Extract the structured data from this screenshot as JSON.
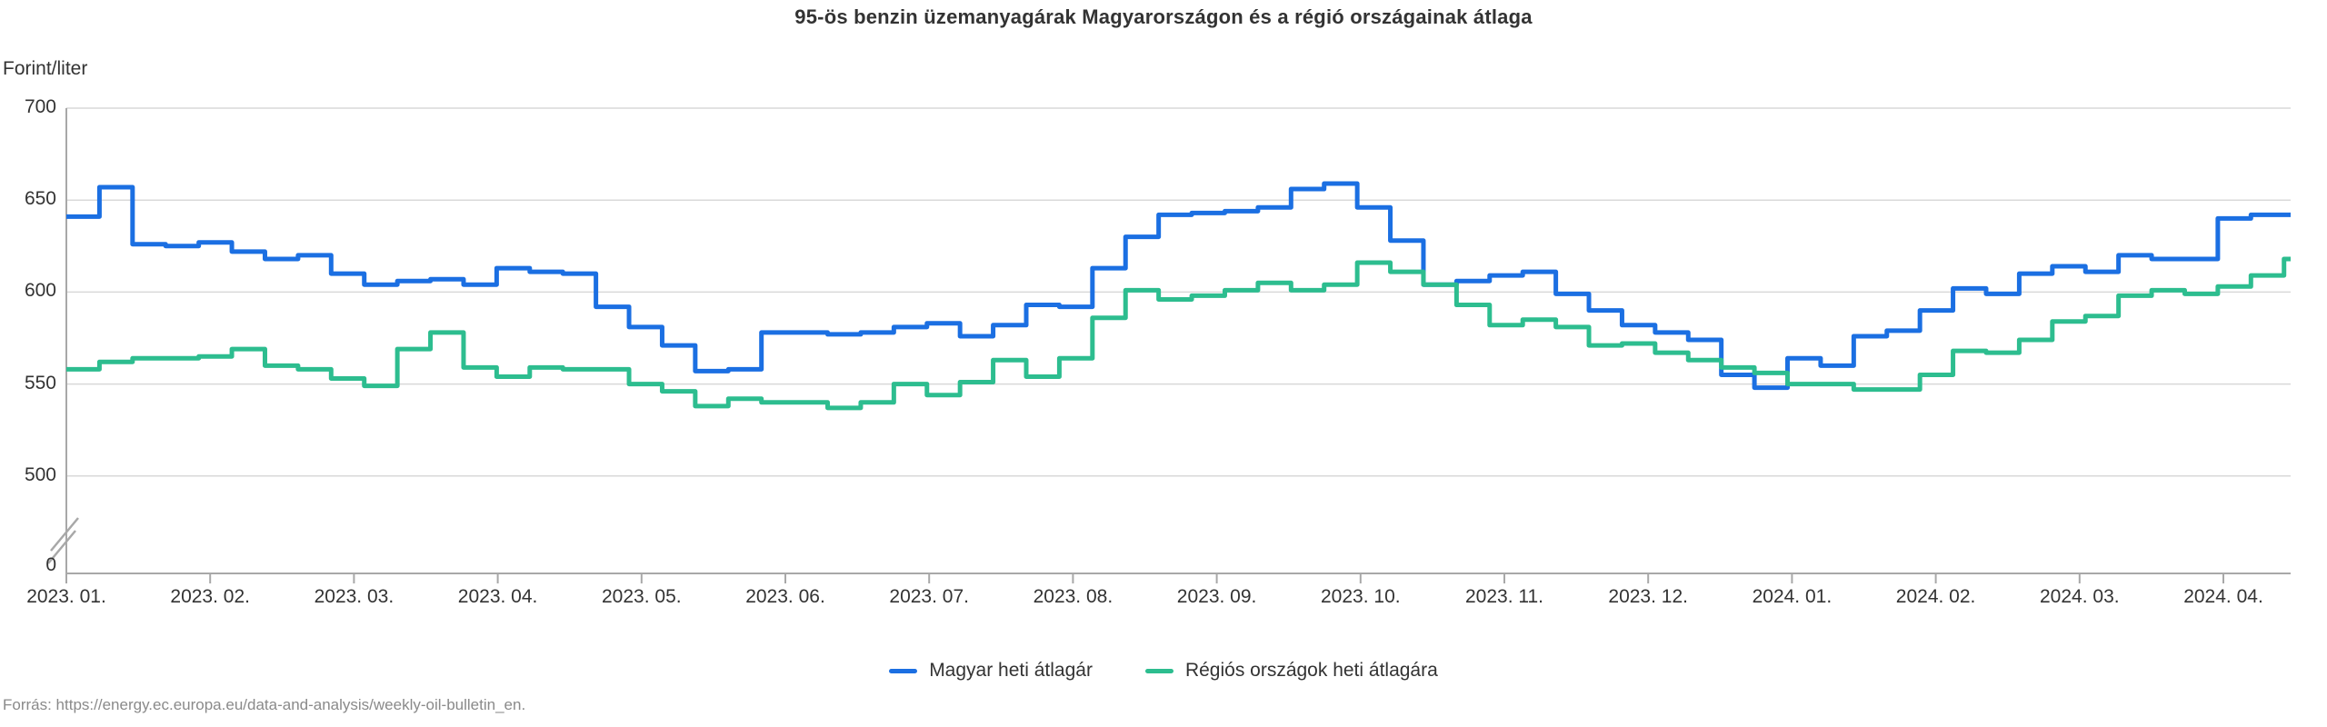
{
  "title": "95-ös benzin üzemanyagárak Magyarországon és a régió országainak átlaga",
  "y_axis_title": "Forint/liter",
  "source": "Forrás: https://energy.ec.europa.eu/data-and-analysis/weekly-oil-bulletin_en.",
  "legend": [
    {
      "label": "Magyar heti átlagár",
      "color": "#1b6fe2"
    },
    {
      "label": "Régiós országok heti átlagára",
      "color": "#2dbd8f"
    }
  ],
  "colors": {
    "hungary_line": "#1b6fe2",
    "region_line": "#2dbd8f",
    "gridline": "#d9d9d9",
    "axis": "#a8a8a8",
    "text": "#333333",
    "source_text": "#8a8a8a"
  },
  "chart_data": {
    "type": "line",
    "step": true,
    "title": "95-ös benzin üzemanyagárak Magyarországon és a régió országainak átlaga",
    "ylabel": "Forint/liter",
    "x_unit": "week",
    "grid": "horizontal",
    "legend_position": "bottom-center",
    "y_axis_break": true,
    "y_tick_labels": [
      "700",
      "650",
      "600",
      "550",
      "500",
      "0"
    ],
    "y_tick_values": [
      700,
      650,
      600,
      550,
      500,
      0
    ],
    "ylim_display": [
      500,
      700
    ],
    "x_tick_labels": [
      "2023. 01.",
      "2023. 02.",
      "2023. 03.",
      "2023. 04.",
      "2023. 05.",
      "2023. 06.",
      "2023. 07.",
      "2023. 08.",
      "2023. 09.",
      "2023. 10.",
      "2023. 11.",
      "2023. 12.",
      "2024. 01.",
      "2024. 02.",
      "2024. 03.",
      "2024. 04."
    ],
    "series": [
      {
        "name": "Magyar heti átlagár",
        "color": "#1b6fe2",
        "values": [
          641,
          657,
          626,
          625,
          627,
          622,
          618,
          620,
          610,
          604,
          606,
          607,
          604,
          613,
          611,
          610,
          592,
          581,
          571,
          557,
          558,
          578,
          578,
          577,
          578,
          581,
          583,
          576,
          582,
          593,
          592,
          613,
          630,
          642,
          643,
          644,
          646,
          656,
          659,
          646,
          628,
          604,
          606,
          609,
          611,
          599,
          590,
          582,
          578,
          574,
          555,
          548,
          564,
          560,
          576,
          579,
          590,
          602,
          599,
          610,
          614,
          611,
          620,
          618,
          618,
          640,
          642,
          642
        ]
      },
      {
        "name": "Régiós országok heti átlagára",
        "color": "#2dbd8f",
        "values": [
          558,
          562,
          564,
          564,
          565,
          569,
          560,
          558,
          553,
          549,
          569,
          578,
          559,
          554,
          559,
          558,
          558,
          550,
          546,
          538,
          542,
          540,
          540,
          537,
          540,
          550,
          544,
          551,
          563,
          554,
          564,
          586,
          601,
          596,
          598,
          601,
          605,
          601,
          604,
          616,
          611,
          604,
          593,
          582,
          585,
          581,
          571,
          572,
          567,
          563,
          559,
          556,
          550,
          550,
          547,
          547,
          555,
          568,
          567,
          574,
          584,
          587,
          598,
          601,
          599,
          603,
          609,
          618
        ]
      }
    ]
  }
}
